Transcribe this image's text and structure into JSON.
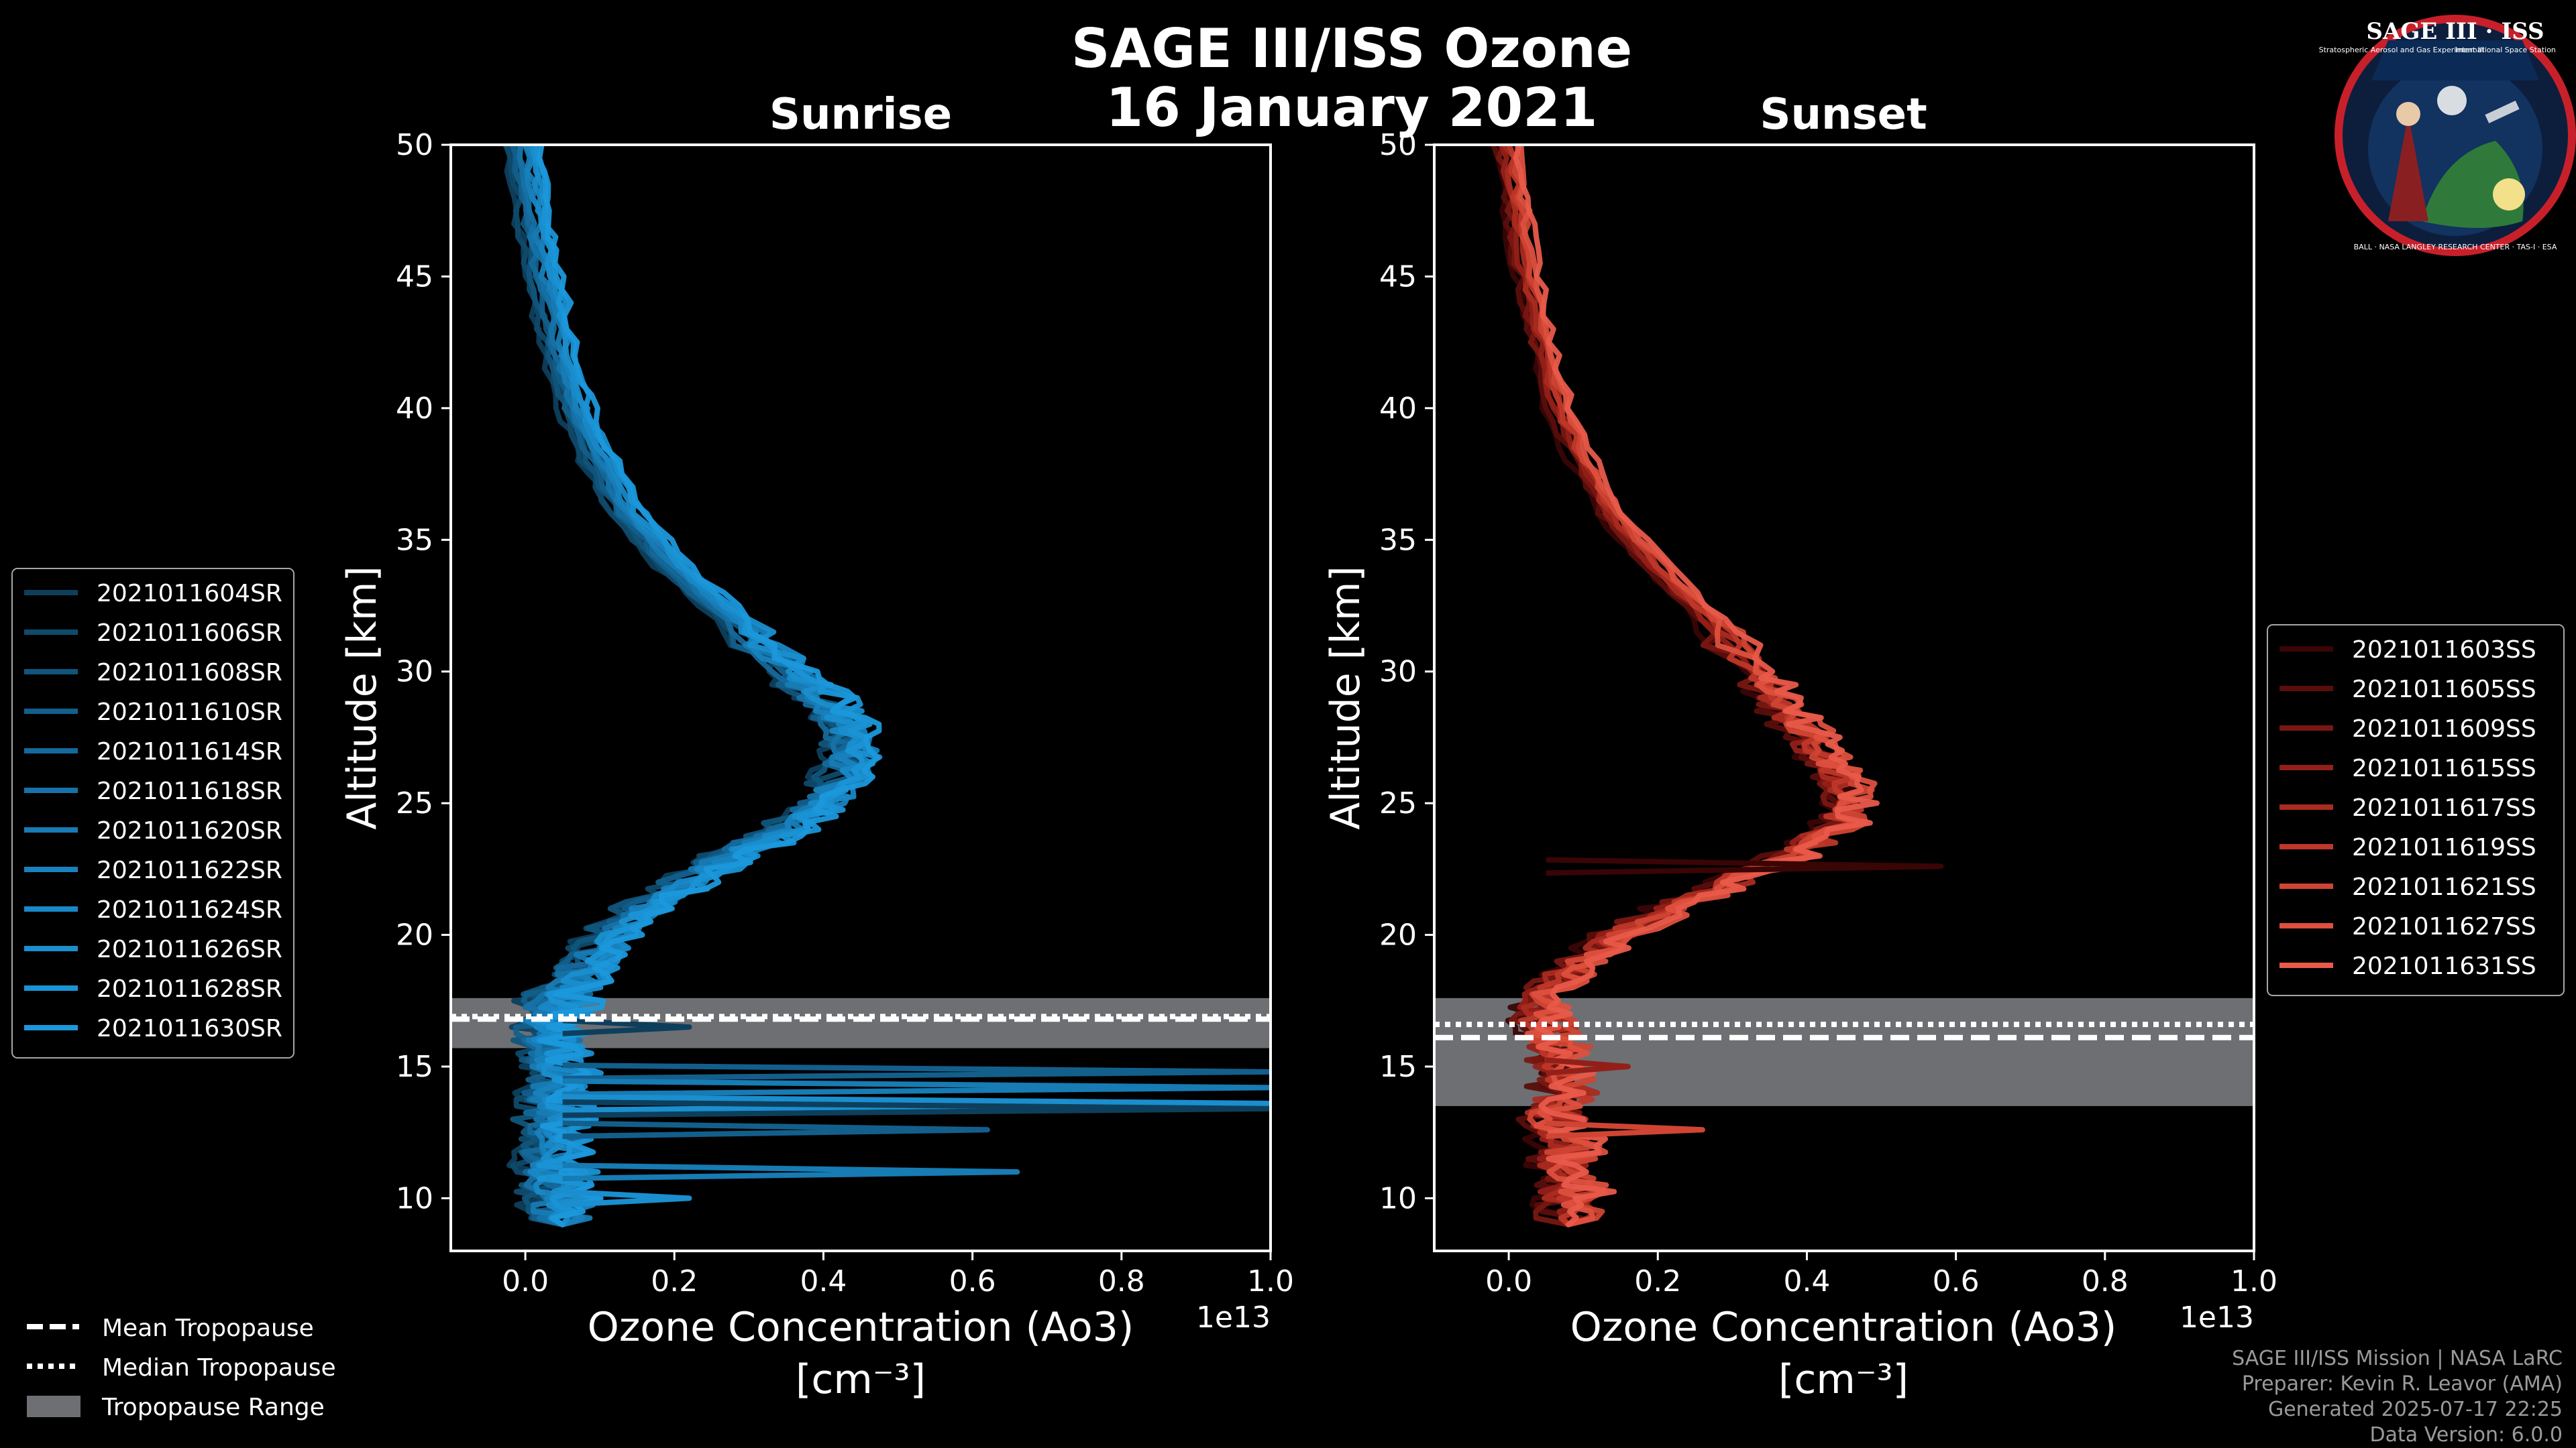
{
  "header": {
    "title": "SAGE III/ISS Ozone",
    "date": "16 January 2021"
  },
  "credits": {
    "line1": "SAGE III/ISS Mission | NASA LaRC",
    "line2": "Preparer: Kevin R. Leavor (AMA)",
    "line3": "Generated 2025-07-17 22:25",
    "line4": "Data Version: 6.0.0"
  },
  "logo": {
    "title": "SAGE III · ISS",
    "left_text": "Stratospheric Aerosol and Gas Experiment III",
    "right_text": "International Space Station",
    "ring_text": "BALL · NASA LANGLEY RESEARCH CENTER · TAS-I · ESA"
  },
  "legend_tropopause": {
    "mean": "Mean Tropopause",
    "median": "Median Tropopause",
    "range": "Tropopause Range"
  },
  "colors": {
    "background": "#000000",
    "sunrise": "#1a93d6",
    "sunset": "#e85a4a",
    "tropopause_band": "#6d6f73"
  },
  "chart_data": [
    {
      "type": "line",
      "title": "Sunrise",
      "xlabel": "Ozone Concentration (Ao3)",
      "xunit": "[cm⁻³]",
      "ylabel": "Altitude [km]",
      "x_offset_label": "1e13",
      "xlim": [
        -0.1,
        1.0
      ],
      "ylim": [
        8,
        50
      ],
      "xticks": [
        "0.0",
        "0.2",
        "0.4",
        "0.6",
        "0.8",
        "1.0"
      ],
      "yticks": [
        "10",
        "15",
        "20",
        "25",
        "30",
        "35",
        "40",
        "45",
        "50"
      ],
      "tropopause": {
        "mean": 16.8,
        "median": 16.9,
        "range": [
          15.7,
          17.6
        ]
      },
      "series": [
        {
          "name": "2021011604SR",
          "color": "#0d3f5c"
        },
        {
          "name": "2021011606SR",
          "color": "#0f4a6c"
        },
        {
          "name": "2021011608SR",
          "color": "#11557c"
        },
        {
          "name": "2021011610SR",
          "color": "#135f8c"
        },
        {
          "name": "2021011614SR",
          "color": "#15699b"
        },
        {
          "name": "2021011618SR",
          "color": "#1672a8"
        },
        {
          "name": "2021011620SR",
          "color": "#177bb4"
        },
        {
          "name": "2021011622SR",
          "color": "#1882be"
        },
        {
          "name": "2021011624SR",
          "color": "#1988c7"
        },
        {
          "name": "2021011626SR",
          "color": "#1a8ece"
        },
        {
          "name": "2021011628SR",
          "color": "#1a93d6"
        },
        {
          "name": "2021011630SR",
          "color": "#1b98dc"
        }
      ],
      "profile": {
        "altitude": [
          50,
          48,
          46,
          44,
          42,
          40,
          38,
          36,
          34,
          32,
          30,
          29,
          28,
          27,
          26,
          25,
          24,
          23,
          22,
          21,
          20,
          19,
          18,
          17,
          16,
          15,
          14,
          13,
          12,
          11,
          10,
          9
        ],
        "ozone": [
          0.0,
          0.01,
          0.02,
          0.035,
          0.05,
          0.07,
          0.1,
          0.14,
          0.2,
          0.28,
          0.36,
          0.4,
          0.43,
          0.44,
          0.43,
          0.4,
          0.35,
          0.28,
          0.22,
          0.16,
          0.12,
          0.09,
          0.06,
          0.04,
          0.04,
          0.05,
          0.05,
          0.04,
          0.05,
          0.04,
          0.05,
          0.05
        ]
      },
      "spikes": [
        {
          "alt": 16.5,
          "value": 0.22
        },
        {
          "alt": 14.8,
          "value": 1.0
        },
        {
          "alt": 14.2,
          "value": 1.0
        },
        {
          "alt": 13.6,
          "value": 1.0
        },
        {
          "alt": 13.4,
          "value": 1.0
        },
        {
          "alt": 12.6,
          "value": 0.62
        },
        {
          "alt": 11.0,
          "value": 0.66
        },
        {
          "alt": 10.0,
          "value": 0.22
        }
      ]
    },
    {
      "type": "line",
      "title": "Sunset",
      "xlabel": "Ozone Concentration (Ao3)",
      "xunit": "[cm⁻³]",
      "ylabel": "Altitude [km]",
      "x_offset_label": "1e13",
      "xlim": [
        -0.1,
        1.0
      ],
      "ylim": [
        8,
        50
      ],
      "xticks": [
        "0.0",
        "0.2",
        "0.4",
        "0.6",
        "0.8",
        "1.0"
      ],
      "yticks": [
        "10",
        "15",
        "20",
        "25",
        "30",
        "35",
        "40",
        "45",
        "50"
      ],
      "tropopause": {
        "mean": 16.1,
        "median": 16.6,
        "range": [
          13.5,
          17.6
        ]
      },
      "series": [
        {
          "name": "2021011603SS",
          "color": "#3a0505"
        },
        {
          "name": "2021011605SS",
          "color": "#5a0e0c"
        },
        {
          "name": "2021011609SS",
          "color": "#781712"
        },
        {
          "name": "2021011615SS",
          "color": "#932018"
        },
        {
          "name": "2021011617SS",
          "color": "#aa2b20"
        },
        {
          "name": "2021011619SS",
          "color": "#be3729"
        },
        {
          "name": "2021011621SS",
          "color": "#cf4433"
        },
        {
          "name": "2021011627SS",
          "color": "#dd503e"
        },
        {
          "name": "2021011631SS",
          "color": "#e85a4a"
        }
      ],
      "profile": {
        "altitude": [
          50,
          48,
          46,
          44,
          42,
          40,
          38,
          36,
          34,
          32,
          30,
          29,
          28,
          27,
          26,
          25,
          24,
          23,
          22,
          21,
          20,
          19,
          18,
          17,
          16,
          15,
          14,
          13,
          12,
          11,
          10,
          9
        ],
        "ozone": [
          0.0,
          0.01,
          0.02,
          0.035,
          0.05,
          0.07,
          0.1,
          0.14,
          0.2,
          0.27,
          0.33,
          0.36,
          0.39,
          0.42,
          0.45,
          0.46,
          0.44,
          0.38,
          0.3,
          0.22,
          0.15,
          0.1,
          0.06,
          0.05,
          0.06,
          0.07,
          0.08,
          0.06,
          0.08,
          0.08,
          0.09,
          0.08
        ]
      },
      "spikes": [
        {
          "alt": 22.6,
          "value": 0.58
        },
        {
          "alt": 15.0,
          "value": 0.16
        },
        {
          "alt": 12.6,
          "value": 0.26
        }
      ]
    }
  ]
}
